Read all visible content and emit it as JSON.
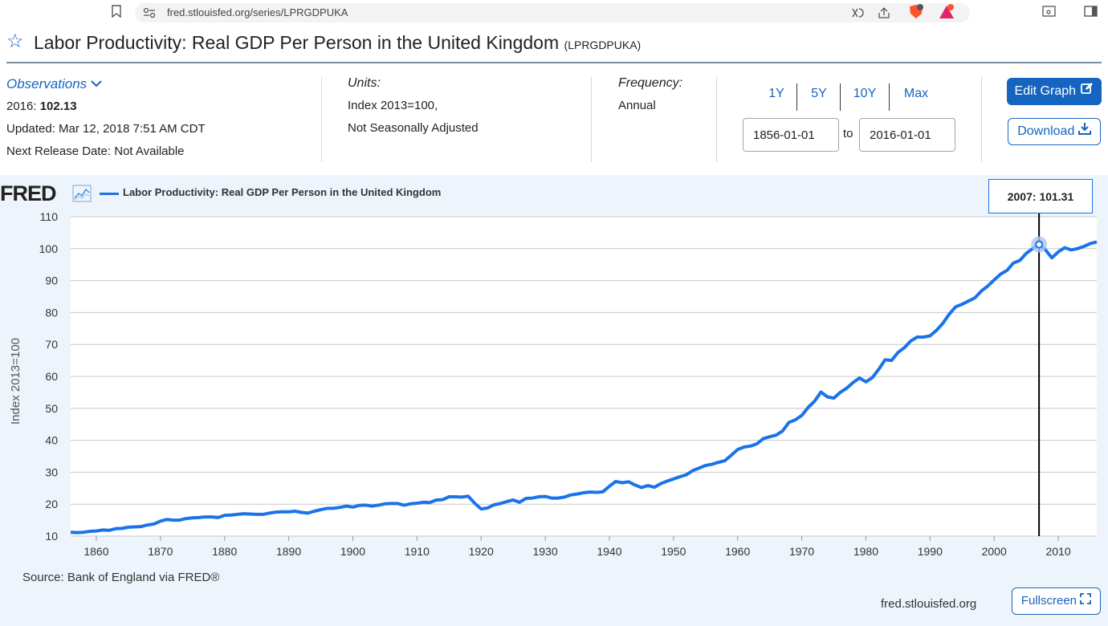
{
  "browser": {
    "url": "fred.stlouisfed.org/series/LPRGDPUKA",
    "bookmark_icon": "bookmark-icon",
    "site_info_icon": "site-settings-icon",
    "brave_icon": "brave-shield-icon",
    "sidebar_icon": "sidebar-icon"
  },
  "page": {
    "title": "Labor Productivity: Real GDP Per Person in the United Kingdom",
    "series_id": "(LPRGDPUKA)"
  },
  "observations": {
    "heading": "Observations",
    "latest_label": "2016:",
    "latest_value": "102.13",
    "updated": "Updated: Mar 12, 2018 7:51 AM CDT",
    "next_release": "Next Release Date: Not Available"
  },
  "units": {
    "heading": "Units:",
    "line1": "Index 2013=100,",
    "line2": "Not Seasonally Adjusted"
  },
  "frequency": {
    "heading": "Frequency:",
    "value": "Annual"
  },
  "range": {
    "buttons": [
      "1Y",
      "5Y",
      "10Y",
      "Max"
    ],
    "start": "1856-01-01",
    "to": "to",
    "end": "2016-01-01"
  },
  "actions": {
    "edit_graph": "Edit Graph",
    "download": "Download",
    "fullscreen": "Fullscreen"
  },
  "graph": {
    "logo": "FRED",
    "legend": "Labor Productivity: Real GDP Per Person in the United Kingdom",
    "tooltip_year": "2007:",
    "tooltip_value": "101.31",
    "source": "Source: Bank of England via FRED®",
    "site": "fred.stlouisfed.org"
  },
  "chart_data": {
    "type": "line",
    "ylabel": "Index 2013=100",
    "xlabel": "",
    "xlim": [
      1856,
      2016
    ],
    "ylim": [
      10,
      110
    ],
    "y_ticks": [
      10,
      20,
      30,
      40,
      50,
      60,
      70,
      80,
      90,
      100,
      110
    ],
    "x_ticks": [
      1860,
      1870,
      1880,
      1890,
      1900,
      1910,
      1920,
      1930,
      1940,
      1950,
      1960,
      1970,
      1980,
      1990,
      2000,
      2010
    ],
    "grid": true,
    "legend_position": "top-left",
    "series_color": "#1a73e8",
    "highlight": {
      "x": 2007,
      "y": 101.31
    },
    "series": [
      {
        "name": "Labor Productivity: Real GDP Per Person in the United Kingdom",
        "x": [
          1856,
          1857,
          1858,
          1859,
          1860,
          1861,
          1862,
          1863,
          1864,
          1865,
          1866,
          1867,
          1868,
          1869,
          1870,
          1871,
          1872,
          1873,
          1874,
          1875,
          1876,
          1877,
          1878,
          1879,
          1880,
          1881,
          1882,
          1883,
          1884,
          1885,
          1886,
          1887,
          1888,
          1889,
          1890,
          1891,
          1892,
          1893,
          1894,
          1895,
          1896,
          1897,
          1898,
          1899,
          1900,
          1901,
          1902,
          1903,
          1904,
          1905,
          1906,
          1907,
          1908,
          1909,
          1910,
          1911,
          1912,
          1913,
          1914,
          1915,
          1916,
          1917,
          1918,
          1919,
          1920,
          1921,
          1922,
          1923,
          1924,
          1925,
          1926,
          1927,
          1928,
          1929,
          1930,
          1931,
          1932,
          1933,
          1934,
          1935,
          1936,
          1937,
          1938,
          1939,
          1940,
          1941,
          1942,
          1943,
          1944,
          1945,
          1946,
          1947,
          1948,
          1949,
          1950,
          1951,
          1952,
          1953,
          1954,
          1955,
          1956,
          1957,
          1958,
          1959,
          1960,
          1961,
          1962,
          1963,
          1964,
          1965,
          1966,
          1967,
          1968,
          1969,
          1970,
          1971,
          1972,
          1973,
          1974,
          1975,
          1976,
          1977,
          1978,
          1979,
          1980,
          1981,
          1982,
          1983,
          1984,
          1985,
          1986,
          1987,
          1988,
          1989,
          1990,
          1991,
          1992,
          1993,
          1994,
          1995,
          1996,
          1997,
          1998,
          1999,
          2000,
          2001,
          2002,
          2003,
          2004,
          2005,
          2006,
          2007,
          2008,
          2009,
          2010,
          2011,
          2012,
          2013,
          2014,
          2015,
          2016
        ],
        "values": [
          11.2,
          11.1,
          11.2,
          11.5,
          11.6,
          11.9,
          11.8,
          12.3,
          12.4,
          12.8,
          12.9,
          13.0,
          13.5,
          13.8,
          14.7,
          15.2,
          15.0,
          15.0,
          15.5,
          15.7,
          15.8,
          16.0,
          16.0,
          15.8,
          16.5,
          16.6,
          16.8,
          17.0,
          16.9,
          16.8,
          16.8,
          17.2,
          17.5,
          17.6,
          17.6,
          17.8,
          17.4,
          17.2,
          17.8,
          18.3,
          18.7,
          18.7,
          19.0,
          19.4,
          19.1,
          19.6,
          19.7,
          19.4,
          19.7,
          20.1,
          20.2,
          20.2,
          19.7,
          20.1,
          20.3,
          20.6,
          20.5,
          21.3,
          21.4,
          22.3,
          22.3,
          22.2,
          22.5,
          20.3,
          18.5,
          18.8,
          19.8,
          20.2,
          20.8,
          21.3,
          20.6,
          21.8,
          21.9,
          22.3,
          22.4,
          21.9,
          21.9,
          22.2,
          22.9,
          23.2,
          23.6,
          23.8,
          23.7,
          23.9,
          25.6,
          27.1,
          26.7,
          27.0,
          26.0,
          25.2,
          25.8,
          25.3,
          26.4,
          27.2,
          27.9,
          28.6,
          29.2,
          30.5,
          31.3,
          32.1,
          32.5,
          33.1,
          33.6,
          35.3,
          37.1,
          37.9,
          38.2,
          38.9,
          40.5,
          41.1,
          41.6,
          42.9,
          45.6,
          46.4,
          47.8,
          50.3,
          52.2,
          55.1,
          53.6,
          53.2,
          55.0,
          56.3,
          58.1,
          59.5,
          58.3,
          59.6,
          62.2,
          65.2,
          65.0,
          67.5,
          69.0,
          71.1,
          72.3,
          72.3,
          72.7,
          74.4,
          76.6,
          79.5,
          81.8,
          82.6,
          83.6,
          84.6,
          86.7,
          88.3,
          90.2,
          92.0,
          93.2,
          95.5,
          96.3,
          98.5,
          100.0,
          101.3,
          99.6,
          97.1,
          99.0,
          100.3,
          99.6,
          100.0,
          100.7,
          101.6,
          102.1
        ]
      }
    ]
  }
}
